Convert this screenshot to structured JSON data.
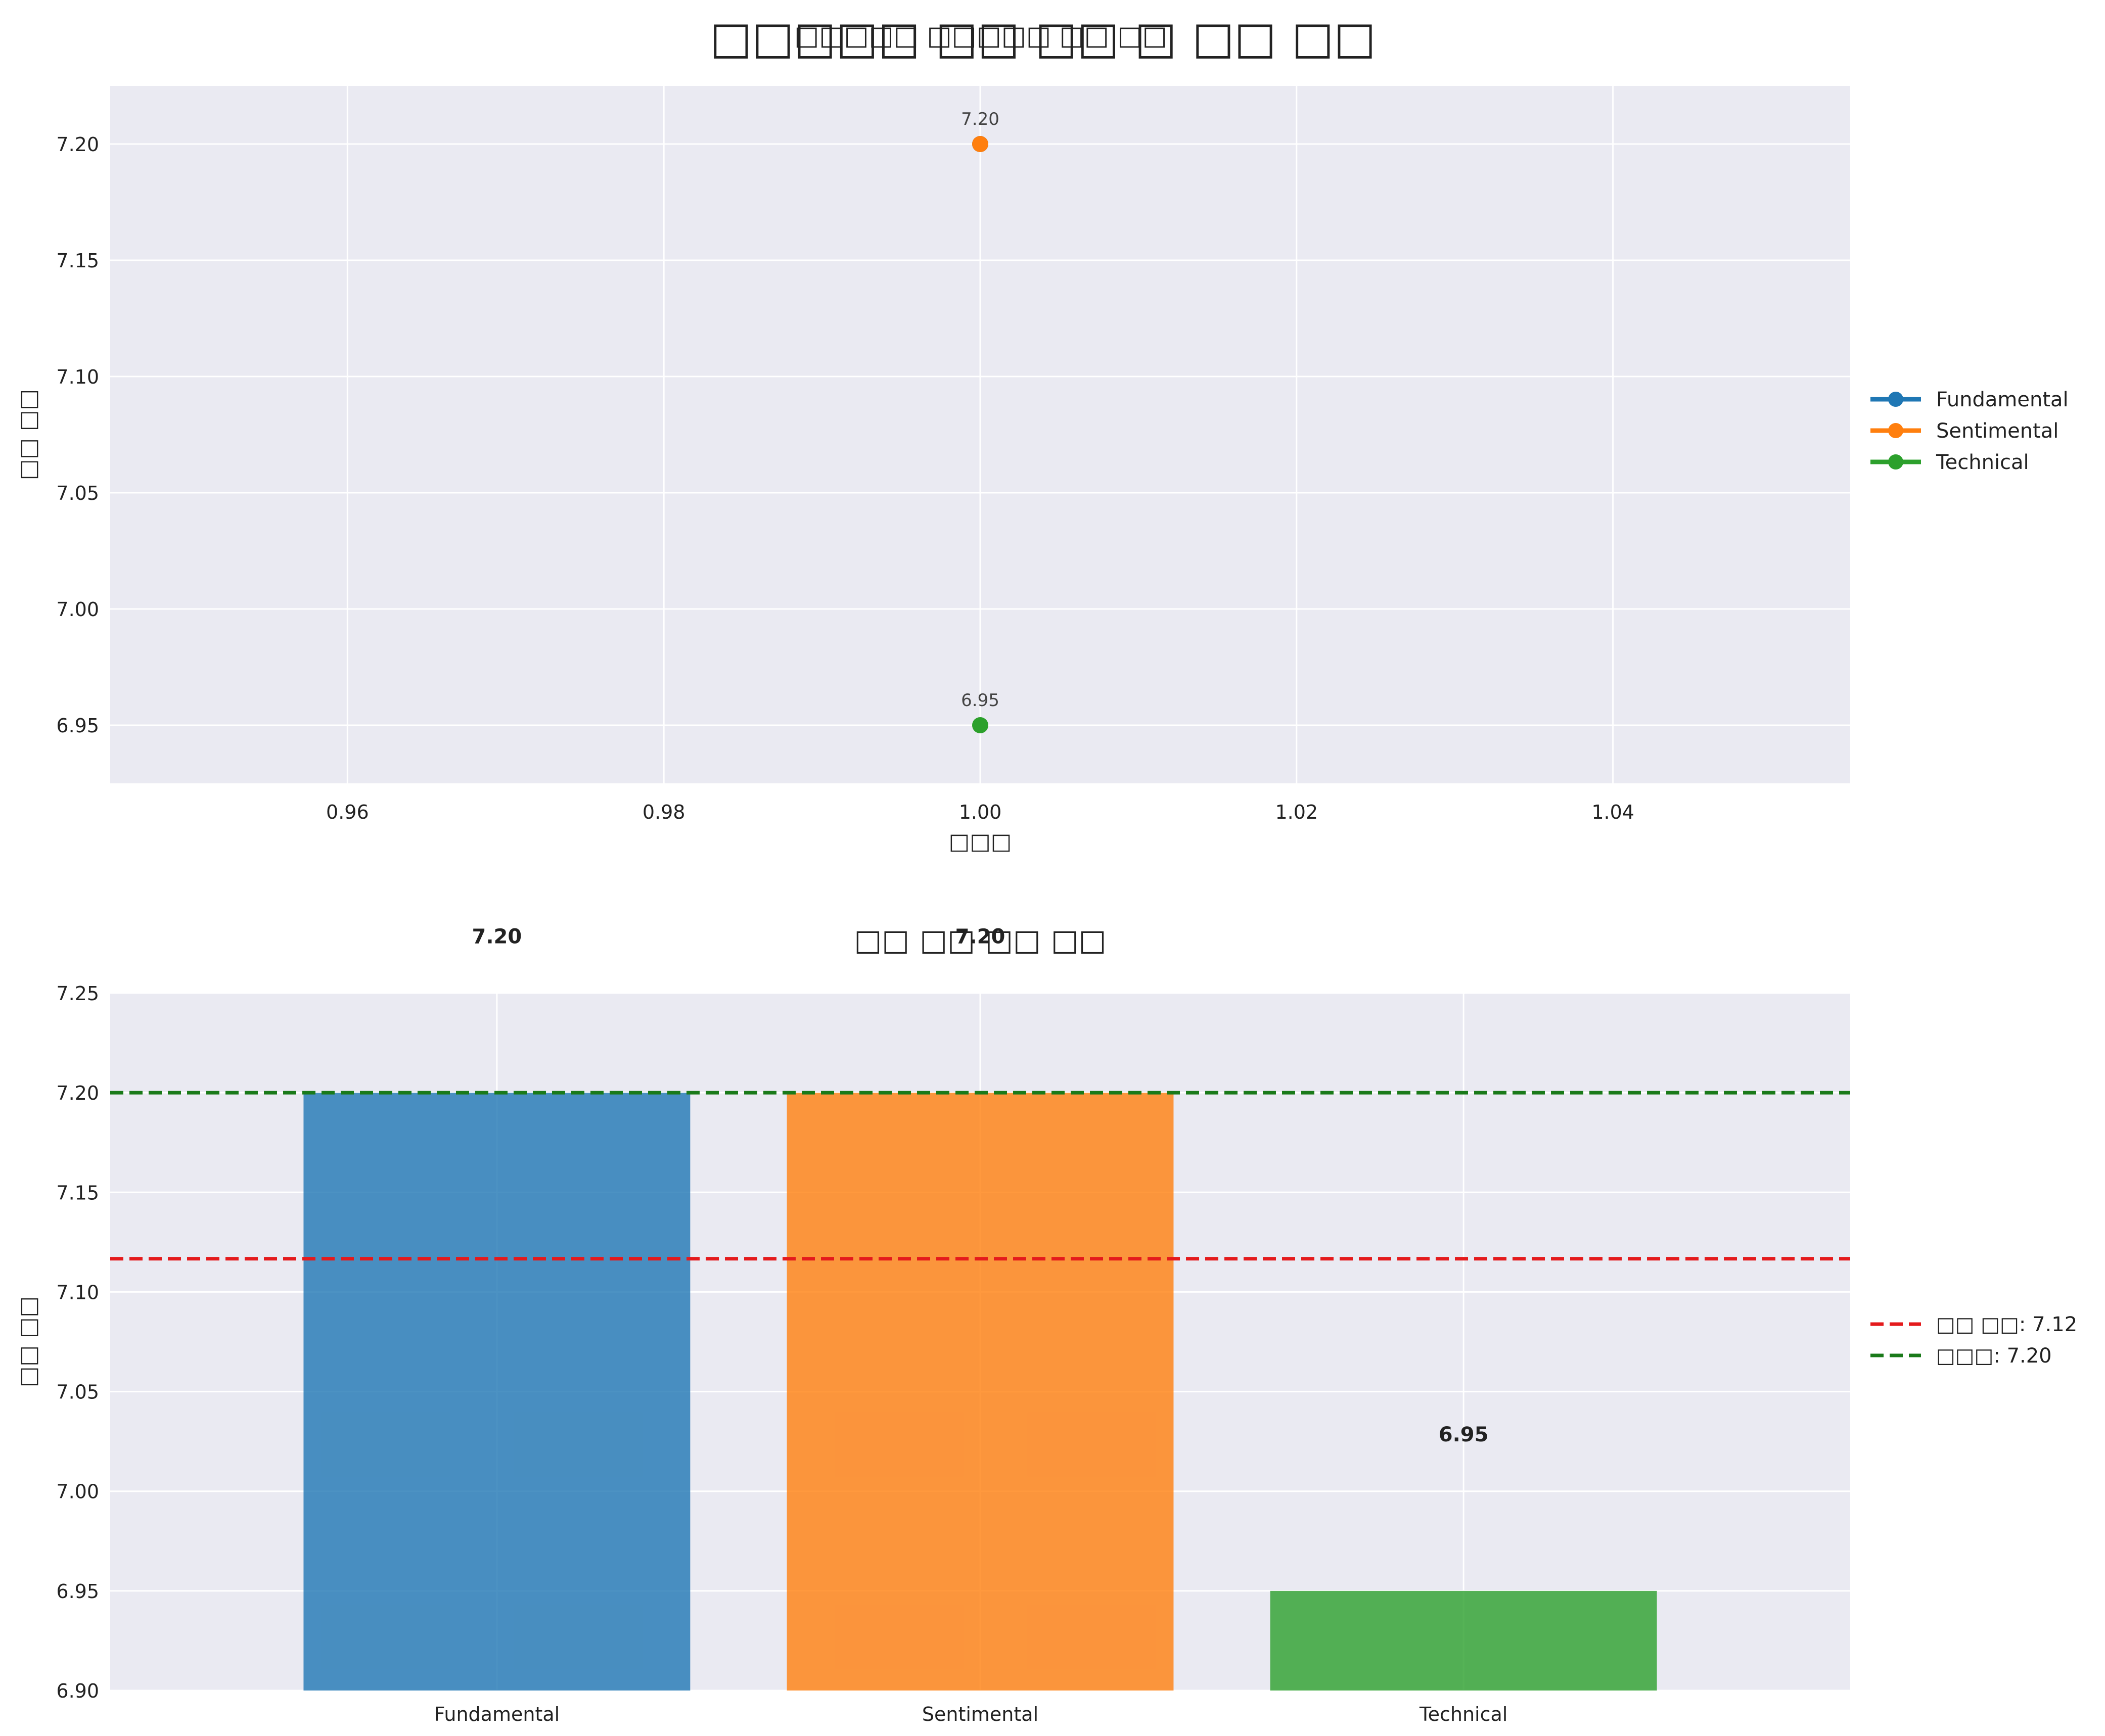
{
  "figure": {
    "suptitle": "□□□□□ □□ □□ □ □□ □□",
    "suptitle_overlay": "□□□□□ □□□□□ □□ □□",
    "colors": {
      "Fundamental": "#1f77b4",
      "Sentimental": "#ff7f0e",
      "Technical": "#2ca02c",
      "average_line": "#e41a1c",
      "max_line": "#1a7a1a",
      "panel_bg": "#eaeaf2"
    }
  },
  "chart_data": [
    {
      "type": "line",
      "title": "",
      "xlabel": "□□□",
      "ylabel": "□□ □□",
      "xlim": [
        0.945,
        1.055
      ],
      "ylim": [
        6.925,
        7.225
      ],
      "xticks": [
        "0.96",
        "0.98",
        "1.00",
        "1.02",
        "1.04"
      ],
      "yticks": [
        "6.95",
        "7.00",
        "7.05",
        "7.10",
        "7.15",
        "7.20"
      ],
      "grid": true,
      "legend_position": "right",
      "series": [
        {
          "name": "Fundamental",
          "x": [
            1.0
          ],
          "y": [
            7.2
          ],
          "labels": []
        },
        {
          "name": "Sentimental",
          "x": [
            1.0
          ],
          "y": [
            7.2
          ],
          "labels": [
            "7.20"
          ]
        },
        {
          "name": "Technical",
          "x": [
            1.0
          ],
          "y": [
            6.95
          ],
          "labels": [
            "6.95"
          ]
        }
      ]
    },
    {
      "type": "bar",
      "title": "□□ □□ □□ □□",
      "xlabel": "",
      "ylabel": "□□ □□",
      "ylim": [
        6.9,
        7.25
      ],
      "yticks": [
        "6.90",
        "6.95",
        "7.00",
        "7.05",
        "7.10",
        "7.15",
        "7.20",
        "7.25"
      ],
      "grid": true,
      "legend_position": "right",
      "categories": [
        "Fundamental",
        "Sentimental",
        "Technical"
      ],
      "values": [
        7.2,
        7.2,
        6.95
      ],
      "value_labels": [
        "7.20",
        "7.20",
        "6.95"
      ],
      "reference_lines": [
        {
          "name": "□□ □□: 7.12",
          "value": 7.1167,
          "style": "dashed",
          "color": "#e41a1c"
        },
        {
          "name": "□□□: 7.20",
          "value": 7.2,
          "style": "dashed",
          "color": "#1a7a1a"
        }
      ]
    }
  ]
}
